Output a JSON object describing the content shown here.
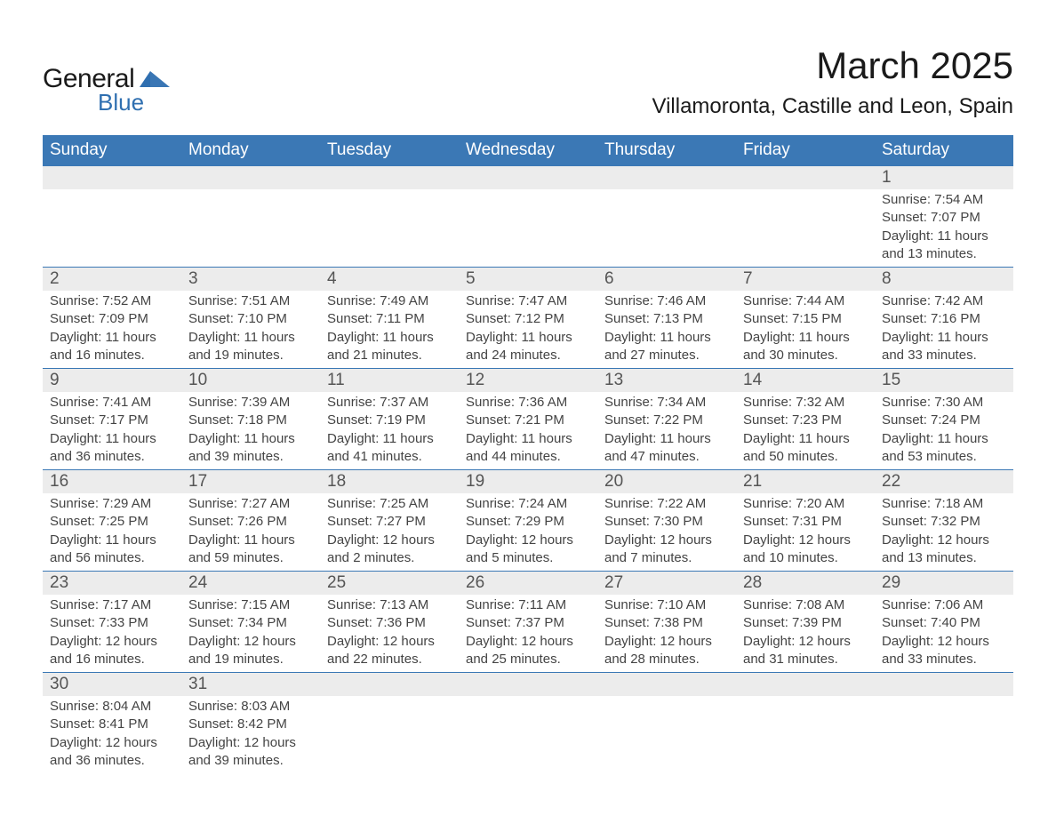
{
  "brand": {
    "name1": "General",
    "name2": "Blue",
    "shape_color": "#2f6fb0"
  },
  "title": {
    "month": "March 2025",
    "location": "Villamoronta, Castille and Leon, Spain"
  },
  "columns": [
    "Sunday",
    "Monday",
    "Tuesday",
    "Wednesday",
    "Thursday",
    "Friday",
    "Saturday"
  ],
  "colors": {
    "header_bg": "#3b78b5",
    "header_text": "#ffffff",
    "daynum_bg": "#ececec",
    "border": "#3b78b5",
    "text": "#444444"
  },
  "weeks": [
    [
      null,
      null,
      null,
      null,
      null,
      null,
      {
        "n": "1",
        "sunrise": "Sunrise: 7:54 AM",
        "sunset": "Sunset: 7:07 PM",
        "daylight1": "Daylight: 11 hours",
        "daylight2": "and 13 minutes."
      }
    ],
    [
      {
        "n": "2",
        "sunrise": "Sunrise: 7:52 AM",
        "sunset": "Sunset: 7:09 PM",
        "daylight1": "Daylight: 11 hours",
        "daylight2": "and 16 minutes."
      },
      {
        "n": "3",
        "sunrise": "Sunrise: 7:51 AM",
        "sunset": "Sunset: 7:10 PM",
        "daylight1": "Daylight: 11 hours",
        "daylight2": "and 19 minutes."
      },
      {
        "n": "4",
        "sunrise": "Sunrise: 7:49 AM",
        "sunset": "Sunset: 7:11 PM",
        "daylight1": "Daylight: 11 hours",
        "daylight2": "and 21 minutes."
      },
      {
        "n": "5",
        "sunrise": "Sunrise: 7:47 AM",
        "sunset": "Sunset: 7:12 PM",
        "daylight1": "Daylight: 11 hours",
        "daylight2": "and 24 minutes."
      },
      {
        "n": "6",
        "sunrise": "Sunrise: 7:46 AM",
        "sunset": "Sunset: 7:13 PM",
        "daylight1": "Daylight: 11 hours",
        "daylight2": "and 27 minutes."
      },
      {
        "n": "7",
        "sunrise": "Sunrise: 7:44 AM",
        "sunset": "Sunset: 7:15 PM",
        "daylight1": "Daylight: 11 hours",
        "daylight2": "and 30 minutes."
      },
      {
        "n": "8",
        "sunrise": "Sunrise: 7:42 AM",
        "sunset": "Sunset: 7:16 PM",
        "daylight1": "Daylight: 11 hours",
        "daylight2": "and 33 minutes."
      }
    ],
    [
      {
        "n": "9",
        "sunrise": "Sunrise: 7:41 AM",
        "sunset": "Sunset: 7:17 PM",
        "daylight1": "Daylight: 11 hours",
        "daylight2": "and 36 minutes."
      },
      {
        "n": "10",
        "sunrise": "Sunrise: 7:39 AM",
        "sunset": "Sunset: 7:18 PM",
        "daylight1": "Daylight: 11 hours",
        "daylight2": "and 39 minutes."
      },
      {
        "n": "11",
        "sunrise": "Sunrise: 7:37 AM",
        "sunset": "Sunset: 7:19 PM",
        "daylight1": "Daylight: 11 hours",
        "daylight2": "and 41 minutes."
      },
      {
        "n": "12",
        "sunrise": "Sunrise: 7:36 AM",
        "sunset": "Sunset: 7:21 PM",
        "daylight1": "Daylight: 11 hours",
        "daylight2": "and 44 minutes."
      },
      {
        "n": "13",
        "sunrise": "Sunrise: 7:34 AM",
        "sunset": "Sunset: 7:22 PM",
        "daylight1": "Daylight: 11 hours",
        "daylight2": "and 47 minutes."
      },
      {
        "n": "14",
        "sunrise": "Sunrise: 7:32 AM",
        "sunset": "Sunset: 7:23 PM",
        "daylight1": "Daylight: 11 hours",
        "daylight2": "and 50 minutes."
      },
      {
        "n": "15",
        "sunrise": "Sunrise: 7:30 AM",
        "sunset": "Sunset: 7:24 PM",
        "daylight1": "Daylight: 11 hours",
        "daylight2": "and 53 minutes."
      }
    ],
    [
      {
        "n": "16",
        "sunrise": "Sunrise: 7:29 AM",
        "sunset": "Sunset: 7:25 PM",
        "daylight1": "Daylight: 11 hours",
        "daylight2": "and 56 minutes."
      },
      {
        "n": "17",
        "sunrise": "Sunrise: 7:27 AM",
        "sunset": "Sunset: 7:26 PM",
        "daylight1": "Daylight: 11 hours",
        "daylight2": "and 59 minutes."
      },
      {
        "n": "18",
        "sunrise": "Sunrise: 7:25 AM",
        "sunset": "Sunset: 7:27 PM",
        "daylight1": "Daylight: 12 hours",
        "daylight2": "and 2 minutes."
      },
      {
        "n": "19",
        "sunrise": "Sunrise: 7:24 AM",
        "sunset": "Sunset: 7:29 PM",
        "daylight1": "Daylight: 12 hours",
        "daylight2": "and 5 minutes."
      },
      {
        "n": "20",
        "sunrise": "Sunrise: 7:22 AM",
        "sunset": "Sunset: 7:30 PM",
        "daylight1": "Daylight: 12 hours",
        "daylight2": "and 7 minutes."
      },
      {
        "n": "21",
        "sunrise": "Sunrise: 7:20 AM",
        "sunset": "Sunset: 7:31 PM",
        "daylight1": "Daylight: 12 hours",
        "daylight2": "and 10 minutes."
      },
      {
        "n": "22",
        "sunrise": "Sunrise: 7:18 AM",
        "sunset": "Sunset: 7:32 PM",
        "daylight1": "Daylight: 12 hours",
        "daylight2": "and 13 minutes."
      }
    ],
    [
      {
        "n": "23",
        "sunrise": "Sunrise: 7:17 AM",
        "sunset": "Sunset: 7:33 PM",
        "daylight1": "Daylight: 12 hours",
        "daylight2": "and 16 minutes."
      },
      {
        "n": "24",
        "sunrise": "Sunrise: 7:15 AM",
        "sunset": "Sunset: 7:34 PM",
        "daylight1": "Daylight: 12 hours",
        "daylight2": "and 19 minutes."
      },
      {
        "n": "25",
        "sunrise": "Sunrise: 7:13 AM",
        "sunset": "Sunset: 7:36 PM",
        "daylight1": "Daylight: 12 hours",
        "daylight2": "and 22 minutes."
      },
      {
        "n": "26",
        "sunrise": "Sunrise: 7:11 AM",
        "sunset": "Sunset: 7:37 PM",
        "daylight1": "Daylight: 12 hours",
        "daylight2": "and 25 minutes."
      },
      {
        "n": "27",
        "sunrise": "Sunrise: 7:10 AM",
        "sunset": "Sunset: 7:38 PM",
        "daylight1": "Daylight: 12 hours",
        "daylight2": "and 28 minutes."
      },
      {
        "n": "28",
        "sunrise": "Sunrise: 7:08 AM",
        "sunset": "Sunset: 7:39 PM",
        "daylight1": "Daylight: 12 hours",
        "daylight2": "and 31 minutes."
      },
      {
        "n": "29",
        "sunrise": "Sunrise: 7:06 AM",
        "sunset": "Sunset: 7:40 PM",
        "daylight1": "Daylight: 12 hours",
        "daylight2": "and 33 minutes."
      }
    ],
    [
      {
        "n": "30",
        "sunrise": "Sunrise: 8:04 AM",
        "sunset": "Sunset: 8:41 PM",
        "daylight1": "Daylight: 12 hours",
        "daylight2": "and 36 minutes."
      },
      {
        "n": "31",
        "sunrise": "Sunrise: 8:03 AM",
        "sunset": "Sunset: 8:42 PM",
        "daylight1": "Daylight: 12 hours",
        "daylight2": "and 39 minutes."
      },
      null,
      null,
      null,
      null,
      null
    ]
  ]
}
